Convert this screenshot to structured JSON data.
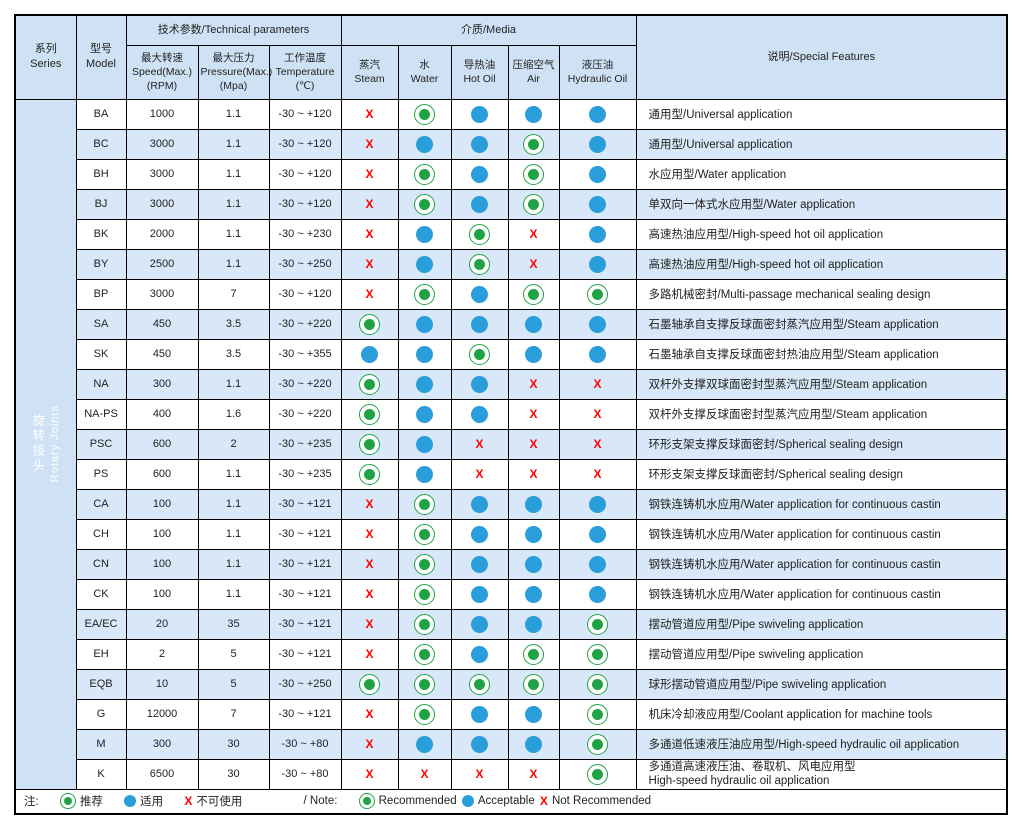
{
  "colors": {
    "header_bg": "#cfe2f5",
    "row_alt_bg": "#d9e8f8",
    "recommended_green": "#1fa344",
    "acceptable_blue": "#2a9edb",
    "not_recommended_red": "#ff0000"
  },
  "table": {
    "header": {
      "series_zh": "系列",
      "series_en": "Series",
      "model_zh": "型号",
      "model_en": "Model",
      "technical": "技术参数/Technical parameters",
      "media": "介质/Media",
      "features": "说明/Special Features",
      "params": [
        {
          "zh": "最大转速",
          "en": "Speed(Max.)",
          "unit": "(RPM)"
        },
        {
          "zh": "最大压力",
          "en": "Pressure(Max.)",
          "unit": "(Mpa)"
        },
        {
          "zh": "工作温度",
          "en": "Temperature",
          "unit": "(℃)"
        }
      ],
      "media_cols": [
        {
          "zh": "蒸汽",
          "en": "Steam"
        },
        {
          "zh": "水",
          "en": "Water"
        },
        {
          "zh": "导热油",
          "en": "Hot Oil"
        },
        {
          "zh": "压缩空气",
          "en": "Air"
        },
        {
          "zh": "液压油",
          "en": "Hydraulic Oil"
        }
      ]
    },
    "series_label": {
      "zh": "旋转接头",
      "en": "Rotary Joints"
    },
    "rows": [
      {
        "model": "BA",
        "speed": "1000",
        "pressure": "1.1",
        "temperature": "-30 ~ +120",
        "media": [
          "X",
          "R",
          "A",
          "A",
          "A"
        ],
        "feature": "通用型/Universal application"
      },
      {
        "model": "BC",
        "speed": "3000",
        "pressure": "1.1",
        "temperature": "-30 ~ +120",
        "media": [
          "X",
          "A",
          "A",
          "R",
          "A"
        ],
        "feature": "通用型/Universal application"
      },
      {
        "model": "BH",
        "speed": "3000",
        "pressure": "1.1",
        "temperature": "-30 ~ +120",
        "media": [
          "X",
          "R",
          "A",
          "R",
          "A"
        ],
        "feature": "水应用型/Water application"
      },
      {
        "model": "BJ",
        "speed": "3000",
        "pressure": "1.1",
        "temperature": "-30 ~ +120",
        "media": [
          "X",
          "R",
          "A",
          "R",
          "A"
        ],
        "feature": "单双向一体式水应用型/Water application"
      },
      {
        "model": "BK",
        "speed": "2000",
        "pressure": "1.1",
        "temperature": "-30 ~ +230",
        "media": [
          "X",
          "A",
          "R",
          "X",
          "A"
        ],
        "feature": "高速热油应用型/High-speed hot oil application"
      },
      {
        "model": "BY",
        "speed": "2500",
        "pressure": "1.1",
        "temperature": "-30 ~ +250",
        "media": [
          "X",
          "A",
          "R",
          "X",
          "A"
        ],
        "feature": "高速热油应用型/High-speed hot oil application"
      },
      {
        "model": "BP",
        "speed": "3000",
        "pressure": "7",
        "temperature": "-30 ~ +120",
        "media": [
          "X",
          "R",
          "A",
          "R",
          "R"
        ],
        "feature": "多路机械密封/Multi-passage mechanical sealing design"
      },
      {
        "model": "SA",
        "speed": "450",
        "pressure": "3.5",
        "temperature": "-30 ~ +220",
        "media": [
          "R",
          "A",
          "A",
          "A",
          "A"
        ],
        "feature": "石墨轴承自支撑反球面密封蒸汽应用型/Steam application"
      },
      {
        "model": "SK",
        "speed": "450",
        "pressure": "3.5",
        "temperature": "-30 ~ +355",
        "media": [
          "A",
          "A",
          "R",
          "A",
          "A"
        ],
        "feature": "石墨轴承自支撑反球面密封热油应用型/Steam application"
      },
      {
        "model": "NA",
        "speed": "300",
        "pressure": "1.1",
        "temperature": "-30 ~ +220",
        "media": [
          "R",
          "A",
          "A",
          "X",
          "X"
        ],
        "feature": "双杆外支撑双球面密封型蒸汽应用型/Steam application"
      },
      {
        "model": "NA-PS",
        "speed": "400",
        "pressure": "1.6",
        "temperature": "-30 ~ +220",
        "media": [
          "R",
          "A",
          "A",
          "X",
          "X"
        ],
        "feature": "双杆外支撑反球面密封型蒸汽应用型/Steam application"
      },
      {
        "model": "PSC",
        "speed": "600",
        "pressure": "2",
        "temperature": "-30 ~ +235",
        "media": [
          "R",
          "A",
          "X",
          "X",
          "X"
        ],
        "feature": "环形支架支撑反球面密封/Spherical sealing design"
      },
      {
        "model": "PS",
        "speed": "600",
        "pressure": "1.1",
        "temperature": "-30 ~ +235",
        "media": [
          "R",
          "A",
          "X",
          "X",
          "X"
        ],
        "feature": "环形支架支撑反球面密封/Spherical sealing design"
      },
      {
        "model": "CA",
        "speed": "100",
        "pressure": "1.1",
        "temperature": "-30 ~ +121",
        "media": [
          "X",
          "R",
          "A",
          "A",
          "A"
        ],
        "feature": "钢铁连铸机水应用/Water application for continuous castin"
      },
      {
        "model": "CH",
        "speed": "100",
        "pressure": "1.1",
        "temperature": "-30 ~ +121",
        "media": [
          "X",
          "R",
          "A",
          "A",
          "A"
        ],
        "feature": "钢铁连铸机水应用/Water application for continuous castin"
      },
      {
        "model": "CN",
        "speed": "100",
        "pressure": "1.1",
        "temperature": "-30 ~ +121",
        "media": [
          "X",
          "R",
          "A",
          "A",
          "A"
        ],
        "feature": "钢铁连铸机水应用/Water application for continuous castin"
      },
      {
        "model": "CK",
        "speed": "100",
        "pressure": "1.1",
        "temperature": "-30 ~ +121",
        "media": [
          "X",
          "R",
          "A",
          "A",
          "A"
        ],
        "feature": "钢铁连铸机水应用/Water application for continuous castin"
      },
      {
        "model": "EA/EC",
        "speed": "20",
        "pressure": "35",
        "temperature": "-30 ~ +121",
        "media": [
          "X",
          "R",
          "A",
          "A",
          "R"
        ],
        "feature": "摆动管道应用型/Pipe swiveling application"
      },
      {
        "model": "EH",
        "speed": "2",
        "pressure": "5",
        "temperature": "-30 ~ +121",
        "media": [
          "X",
          "R",
          "A",
          "R",
          "R"
        ],
        "feature": "摆动管道应用型/Pipe swiveling application"
      },
      {
        "model": "EQB",
        "speed": "10",
        "pressure": "5",
        "temperature": "-30 ~ +250",
        "media": [
          "R",
          "R",
          "R",
          "R",
          "R"
        ],
        "feature": "球形摆动管道应用型/Pipe swiveling application"
      },
      {
        "model": "G",
        "speed": "12000",
        "pressure": "7",
        "temperature": "-30 ~ +121",
        "media": [
          "X",
          "R",
          "A",
          "A",
          "R"
        ],
        "feature": "机床冷却液应用型/Coolant application for machine tools"
      },
      {
        "model": "M",
        "speed": "300",
        "pressure": "30",
        "temperature": "-30 ~ +80",
        "media": [
          "X",
          "A",
          "A",
          "A",
          "R"
        ],
        "feature": "多通道低速液压油应用型/High-speed hydraulic oil application"
      },
      {
        "model": "K",
        "speed": "6500",
        "pressure": "30",
        "temperature": "-30 ~ +80",
        "media": [
          "X",
          "X",
          "X",
          "X",
          "R"
        ],
        "feature": "多通道高速液压油、卷取机、风电应用型",
        "feature2": "High-speed hydraulic oil application"
      }
    ],
    "legend": {
      "note_zh_prefix": "注:",
      "recommended_zh": "推荐",
      "acceptable_zh": "适用",
      "not_recommended_zh": "不可使用",
      "note_en_prefix": "/ Note:",
      "recommended_en": "Recommended",
      "acceptable_en": "Acceptable",
      "not_recommended_en": "Not Recommended",
      "x_symbol": "X"
    }
  }
}
